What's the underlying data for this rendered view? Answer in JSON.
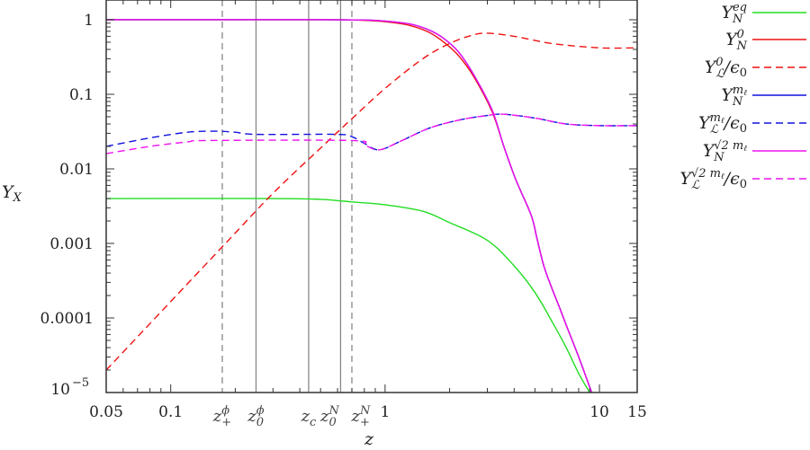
{
  "chart_data": {
    "type": "line",
    "xlabel": "z",
    "ylabel": {
      "base": "Y",
      "sub": "X"
    },
    "xscale": "log",
    "yscale": "log",
    "xlim": [
      0.05,
      15
    ],
    "ylim": [
      1e-05,
      1.84
    ],
    "grid": false,
    "legend_placement": "right",
    "xticks": [
      {
        "v": 0.05,
        "label": "0.05"
      },
      {
        "v": 0.1,
        "label": "0.1"
      },
      {
        "v": 1,
        "label": "1"
      },
      {
        "v": 10,
        "label": "10"
      },
      {
        "v": 15,
        "label": "15"
      }
    ],
    "yticks": [
      {
        "v": 1,
        "label": "1"
      },
      {
        "v": 0.1,
        "label": "0.1"
      },
      {
        "v": 0.01,
        "label": "0.01"
      },
      {
        "v": 0.001,
        "label": "0.001"
      },
      {
        "v": 0.0001,
        "label": "0.0001"
      },
      {
        "v": 1e-05,
        "label": "10",
        "sup": "−5"
      }
    ],
    "vlines": [
      {
        "z": 0.174,
        "style": "dashed",
        "label": {
          "base": "z",
          "sup": "ϕ",
          "sub": "+"
        }
      },
      {
        "z": 0.25,
        "style": "solid",
        "label": {
          "base": "z",
          "sup": "ϕ",
          "sub": "0"
        }
      },
      {
        "z": 0.44,
        "style": "solid",
        "label": {
          "base": "z",
          "sup": "",
          "sub": "c"
        }
      },
      {
        "z": 0.62,
        "style": "solid",
        "label": {
          "base": "z",
          "sup": "N",
          "sub": "0"
        }
      },
      {
        "z": 0.7,
        "style": "dashed",
        "label": {
          "base": "z",
          "sup": "N",
          "sub": "+"
        }
      }
    ],
    "series": [
      {
        "name": {
          "base": "Y",
          "sub": "N",
          "sup": "eq",
          "suffix": ""
        },
        "color": "#22dd22",
        "dash": false,
        "points": [
          [
            0.05,
            0.004
          ],
          [
            0.3,
            0.004
          ],
          [
            0.5,
            0.0039
          ],
          [
            0.7,
            0.0036
          ],
          [
            1,
            0.0033
          ],
          [
            1.5,
            0.0027
          ],
          [
            2,
            0.0019
          ],
          [
            3,
            0.0011
          ],
          [
            4,
            0.0005
          ],
          [
            5,
            0.00022
          ],
          [
            6,
            9e-05
          ],
          [
            7,
            4e-05
          ],
          [
            8,
            1.8e-05
          ],
          [
            9,
            1e-05
          ]
        ]
      },
      {
        "name": {
          "base": "Y",
          "sub": "N",
          "sup": "0",
          "suffix": ""
        },
        "color": "#ee1111",
        "dash": false,
        "points": [
          [
            0.05,
            1
          ],
          [
            0.5,
            1
          ],
          [
            0.8,
            0.98
          ],
          [
            1,
            0.94
          ],
          [
            1.3,
            0.84
          ],
          [
            1.6,
            0.68
          ],
          [
            1.88,
            0.5
          ],
          [
            2.2,
            0.33
          ],
          [
            2.6,
            0.17
          ],
          [
            3.16,
            0.058
          ],
          [
            3.58,
            0.02
          ],
          [
            4.07,
            0.0072
          ],
          [
            4.8,
            0.0024
          ],
          [
            5.1,
            0.0012
          ],
          [
            5.5,
            0.0005
          ],
          [
            6,
            0.00025
          ],
          [
            6.5,
            0.00014
          ],
          [
            7,
            8e-05
          ],
          [
            8,
            3e-05
          ],
          [
            9.2,
            1e-05
          ]
        ]
      },
      {
        "name": {
          "base": "Y",
          "sub": "ℒ",
          "sup": "0",
          "suffix": "/ϵ",
          "suffix_sub": "0"
        },
        "color": "#ee1111",
        "dash": true,
        "points": [
          [
            0.05,
            2e-05
          ],
          [
            0.174,
            0.0009
          ],
          [
            0.3,
            0.0047
          ],
          [
            0.5,
            0.019
          ],
          [
            0.7,
            0.047
          ],
          [
            1,
            0.12
          ],
          [
            1.5,
            0.3
          ],
          [
            2,
            0.48
          ],
          [
            2.5,
            0.61
          ],
          [
            2.95,
            0.66
          ],
          [
            4,
            0.6
          ],
          [
            6,
            0.48
          ],
          [
            10,
            0.42
          ],
          [
            15,
            0.42
          ]
        ]
      },
      {
        "name": {
          "base": "Y",
          "sub": "N",
          "sup": "m",
          "sup_sub": "ℓ",
          "suffix": ""
        },
        "color": "#1111dd",
        "dash": false,
        "points": [
          [
            0.05,
            1
          ],
          [
            0.5,
            1
          ],
          [
            0.8,
            0.99
          ],
          [
            1,
            0.96
          ],
          [
            1.3,
            0.88
          ],
          [
            1.6,
            0.73
          ],
          [
            1.88,
            0.56
          ],
          [
            2.2,
            0.37
          ],
          [
            2.6,
            0.18
          ],
          [
            3.16,
            0.061
          ],
          [
            3.58,
            0.02
          ],
          [
            4.07,
            0.0072
          ],
          [
            4.8,
            0.0024
          ],
          [
            5.1,
            0.0012
          ],
          [
            5.5,
            0.0005
          ],
          [
            6,
            0.00025
          ],
          [
            6.5,
            0.00014
          ],
          [
            7,
            8e-05
          ],
          [
            8,
            3e-05
          ],
          [
            9.2,
            1e-05
          ]
        ]
      },
      {
        "name": {
          "base": "Y",
          "sub": "ℒ",
          "sup": "m",
          "sup_sub": "ℓ",
          "suffix": "/ϵ",
          "suffix_sub": "0"
        },
        "color": "#1111dd",
        "dash": true,
        "points": [
          [
            0.05,
            0.02
          ],
          [
            0.08,
            0.026
          ],
          [
            0.12,
            0.031
          ],
          [
            0.16,
            0.032
          ],
          [
            0.2,
            0.031
          ],
          [
            0.25,
            0.029
          ],
          [
            0.6,
            0.029
          ],
          [
            0.7,
            0.027
          ],
          [
            0.8,
            0.022
          ],
          [
            0.94,
            0.018
          ],
          [
            1.2,
            0.024
          ],
          [
            1.6,
            0.035
          ],
          [
            2.2,
            0.045
          ],
          [
            3,
            0.052
          ],
          [
            3.58,
            0.054
          ],
          [
            5,
            0.048
          ],
          [
            7,
            0.04
          ],
          [
            10,
            0.038
          ],
          [
            15,
            0.038
          ]
        ]
      },
      {
        "name": {
          "base": "Y",
          "sub": "N",
          "sup": "√2 m",
          "sup_sub": "ℓ",
          "suffix": ""
        },
        "color": "#ee11ee",
        "dash": false,
        "points": [
          [
            0.05,
            1
          ],
          [
            0.5,
            1
          ],
          [
            0.8,
            0.99
          ],
          [
            1,
            0.96
          ],
          [
            1.3,
            0.88
          ],
          [
            1.6,
            0.73
          ],
          [
            1.88,
            0.56
          ],
          [
            2.2,
            0.37
          ],
          [
            2.6,
            0.18
          ],
          [
            3.16,
            0.061
          ],
          [
            3.58,
            0.02
          ],
          [
            4.07,
            0.0072
          ],
          [
            4.8,
            0.0024
          ],
          [
            5.1,
            0.0012
          ],
          [
            5.5,
            0.0005
          ],
          [
            6,
            0.00025
          ],
          [
            6.5,
            0.00014
          ],
          [
            7,
            8e-05
          ],
          [
            8,
            3e-05
          ],
          [
            9.2,
            1e-05
          ]
        ]
      },
      {
        "name": {
          "base": "Y",
          "sub": "ℒ",
          "sup": "√2 m",
          "sup_sub": "ℓ",
          "suffix": "/ϵ",
          "suffix_sub": "0"
        },
        "color": "#ee11ee",
        "dash": true,
        "points": [
          [
            0.05,
            0.016
          ],
          [
            0.08,
            0.02
          ],
          [
            0.12,
            0.023
          ],
          [
            0.15,
            0.024
          ],
          [
            0.7,
            0.024
          ],
          [
            0.8,
            0.021
          ],
          [
            0.94,
            0.018
          ],
          [
            1.2,
            0.024
          ],
          [
            1.6,
            0.035
          ],
          [
            2.2,
            0.045
          ],
          [
            3,
            0.052
          ],
          [
            3.58,
            0.054
          ],
          [
            5,
            0.048
          ],
          [
            7,
            0.04
          ],
          [
            10,
            0.038
          ],
          [
            15,
            0.038
          ]
        ]
      }
    ]
  }
}
